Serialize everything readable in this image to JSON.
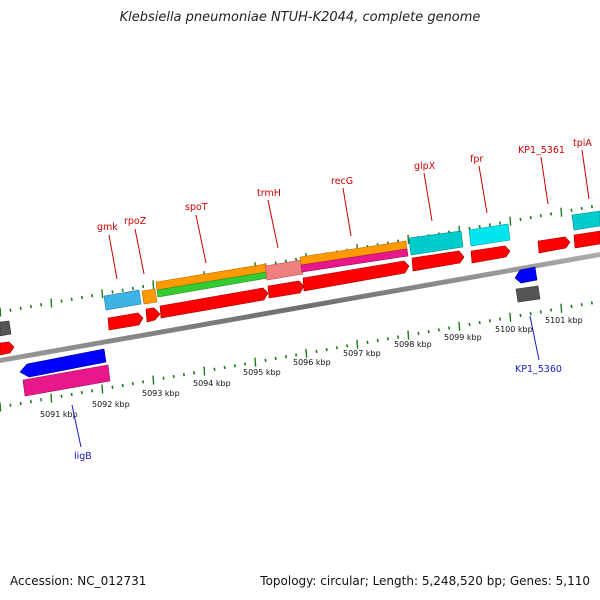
{
  "title": "Klebsiella pneumoniae NTUH-K2044, complete genome",
  "footer": {
    "accession_label": "Accession:",
    "accession": "NC_012731",
    "topology_label": "Topology:",
    "topology": "circular",
    "length_label": "Length:",
    "length": "5,248,520 bp",
    "genes_label": "Genes:",
    "genes": "5,110"
  },
  "colors": {
    "backbone": "#808080",
    "tick": "#1f7a1f",
    "forward_cds": "#ff0000",
    "reverse_cds": "#0000ff",
    "pink": "#e8178a",
    "cyan": "#00cccc",
    "light_blue": "#3fb2e6",
    "orange": "#ff9900",
    "green": "#33cc33",
    "salmon": "#f08080",
    "gray": "#555555",
    "label_forward": "#cc0000",
    "label_reverse": "#1a1acc"
  },
  "coordinate_labels": [
    "5091 kbp",
    "5092 kbp",
    "5093 kbp",
    "5094 kbp",
    "5095 kbp",
    "5096 kbp",
    "5097 kbp",
    "5098 kbp",
    "5099 kbp",
    "5100 kbp",
    "5101 kbp"
  ],
  "forward_gene_labels": [
    "gmk",
    "rpoZ",
    "spoT",
    "trmH",
    "recG",
    "glpX",
    "fpr",
    "KP1_5361",
    "tpiA"
  ],
  "reverse_gene_labels": [
    "ligB",
    "KP1_5360"
  ]
}
